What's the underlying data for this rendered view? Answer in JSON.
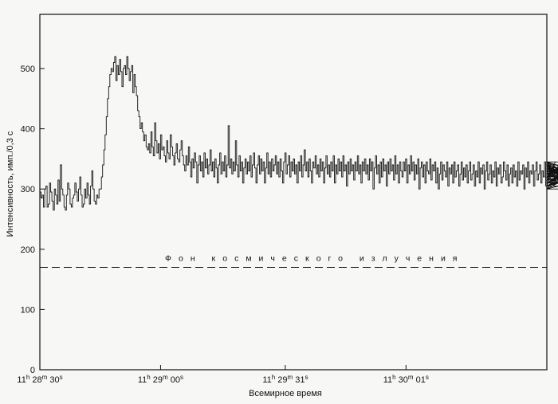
{
  "chart_data": {
    "type": "line",
    "ylabel": "Интенсивность, имп./0,3 с",
    "xlabel": "Всемирное время",
    "ylim": [
      0,
      590
    ],
    "xlim": [
      0,
      126
    ],
    "grid": false,
    "y_ticks": [
      0,
      100,
      200,
      300,
      400,
      500
    ],
    "x_ticks": [
      {
        "x": 0,
        "h": "11",
        "m": "28",
        "s": "30"
      },
      {
        "x": 30,
        "h": "11",
        "m": "29",
        "s": "00"
      },
      {
        "x": 61,
        "h": "11",
        "m": "29",
        "s": "31"
      },
      {
        "x": 91,
        "h": "11",
        "m": "30",
        "s": "01"
      }
    ],
    "time_units": {
      "h": "h",
      "m": "m",
      "s": "s"
    },
    "reference_line": {
      "y": 170,
      "style": "dashed",
      "label": "Фон космического излучения"
    },
    "series": [
      {
        "step": 0.3,
        "values": [
          295,
          285,
          290,
          270,
          300,
          305,
          270,
          275,
          310,
          295,
          280,
          265,
          300,
          290,
          275,
          315,
          280,
          340,
          300,
          290,
          270,
          265,
          290,
          310,
          300,
          275,
          270,
          285,
          290,
          310,
          295,
          280,
          300,
          320,
          290,
          270,
          275,
          300,
          285,
          310,
          290,
          275,
          305,
          330,
          300,
          280,
          275,
          290,
          285,
          300,
          300,
          320,
          340,
          365,
          390,
          420,
          450,
          470,
          490,
          500,
          495,
          510,
          520,
          480,
          505,
          490,
          515,
          495,
          470,
          500,
          505,
          490,
          520,
          500,
          480,
          495,
          505,
          460,
          490,
          470,
          455,
          430,
          420,
          400,
          410,
          395,
          380,
          390,
          370,
          365,
          375,
          360,
          395,
          370,
          355,
          410,
          380,
          360,
          375,
          350,
          390,
          365,
          370,
          355,
          345,
          380,
          360,
          350,
          390,
          370,
          355,
          340,
          360,
          375,
          350,
          345,
          365,
          380,
          355,
          340,
          330,
          355,
          340,
          370,
          345,
          320,
          350,
          335,
          360,
          345,
          310,
          340,
          355,
          330,
          345,
          320,
          360,
          335,
          350,
          325,
          340,
          365,
          330,
          345,
          320,
          350,
          335,
          310,
          340,
          360,
          325,
          345,
          330,
          355,
          320,
          340,
          405,
          335,
          350,
          325,
          345,
          330,
          380,
          340,
          320,
          355,
          330,
          345,
          310,
          335,
          350,
          325,
          345,
          330,
          355,
          320,
          340,
          360,
          335,
          310,
          340,
          355,
          325,
          350,
          330,
          345,
          310,
          335,
          360,
          325,
          345,
          320,
          350,
          330,
          340,
          355,
          325,
          345,
          320,
          350,
          330,
          310,
          345,
          360,
          325,
          340,
          355,
          320,
          345,
          330,
          350,
          325,
          340,
          310,
          345,
          330,
          355,
          320,
          340,
          365,
          330,
          345,
          320,
          350,
          330,
          310,
          345,
          335,
          355,
          325,
          340,
          320,
          350,
          330,
          345,
          310,
          335,
          355,
          325,
          340,
          320,
          345,
          330,
          355,
          310,
          340,
          325,
          350,
          330,
          345,
          320,
          355,
          330,
          340,
          305,
          345,
          325,
          350,
          330,
          340,
          315,
          345,
          330,
          355,
          325,
          340,
          310,
          345,
          330,
          350,
          325,
          340,
          315,
          350,
          330,
          345,
          300,
          335,
          355,
          325,
          340,
          310,
          345,
          320,
          350,
          330,
          340,
          305,
          345,
          325,
          350,
          330,
          340,
          315,
          355,
          325,
          340,
          310,
          345,
          330,
          320,
          345,
          330,
          350,
          310,
          340,
          325,
          355,
          330,
          345,
          315,
          340,
          325,
          350,
          300,
          335,
          345,
          320,
          340,
          310,
          345,
          330,
          325,
          350,
          315,
          340,
          330,
          345,
          310,
          335,
          300,
          325,
          345,
          315,
          340,
          330,
          320,
          345,
          305,
          335,
          325,
          340,
          310,
          345,
          320,
          330,
          340,
          305,
          325,
          345,
          315,
          335,
          320,
          340,
          310,
          330,
          345,
          315,
          325,
          340,
          305,
          330,
          320,
          345,
          310,
          335,
          325,
          340,
          300,
          330,
          345,
          315,
          325,
          340,
          310,
          330,
          320,
          345,
          305,
          335,
          325,
          340,
          310,
          320,
          345,
          330,
          315,
          340,
          305,
          325,
          335,
          310,
          340,
          320,
          330,
          305,
          345,
          315,
          330,
          325,
          340,
          300,
          335,
          320,
          345,
          310,
          330,
          325,
          340,
          305,
          330,
          345,
          315,
          325,
          340,
          310,
          330,
          320,
          345,
          305,
          325,
          335,
          310,
          340,
          320,
          330,
          305,
          345,
          315,
          330,
          320,
          340,
          300,
          335,
          325,
          340,
          310,
          330,
          320,
          345,
          305,
          330,
          335,
          315,
          325,
          340,
          305,
          330,
          320,
          345,
          310,
          330,
          340,
          315,
          325,
          335,
          300,
          340,
          320,
          330,
          310,
          345,
          315,
          325,
          340,
          305,
          335,
          320,
          330,
          315,
          340,
          305,
          330,
          325,
          345,
          310,
          320,
          340,
          300,
          330
        ]
      }
    ]
  }
}
